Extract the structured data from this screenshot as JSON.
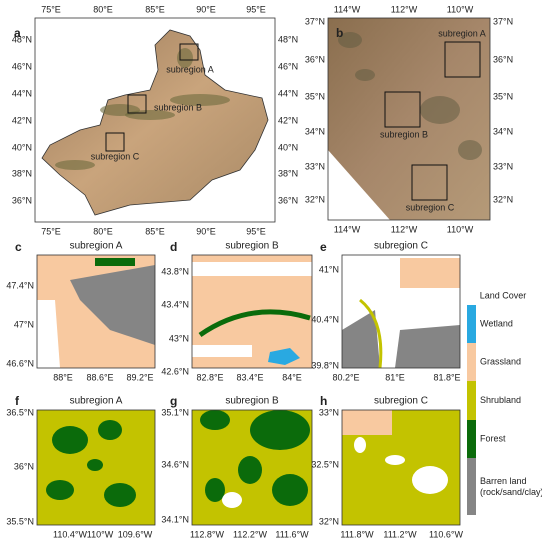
{
  "figure": {
    "panels": [
      {
        "label": "a",
        "xticks": [
          "75°E",
          "80°E",
          "85°E",
          "90°E",
          "95°E"
        ],
        "yticks": [
          "48°N",
          "46°N",
          "44°N",
          "42°N",
          "40°N",
          "38°N",
          "36°N"
        ],
        "subregions": [
          "subregion A",
          "subregion B",
          "subregion C"
        ]
      },
      {
        "label": "b",
        "xticks": [
          "114°W",
          "112°W",
          "110°W"
        ],
        "yticks": [
          "37°N",
          "36°N",
          "35°N",
          "34°N",
          "33°N",
          "32°N"
        ],
        "subregions": [
          "subregion A",
          "subregion B",
          "subregion C"
        ]
      },
      {
        "label": "c",
        "title": "subregion A",
        "xticks": [
          "88°E",
          "88.6°E",
          "89.2°E"
        ],
        "yticks": [
          "47.4°N",
          "47°N",
          "46.6°N"
        ]
      },
      {
        "label": "d",
        "title": "subregion B",
        "xticks": [
          "82.8°E",
          "83.4°E",
          "84°E"
        ],
        "yticks": [
          "43.8°N",
          "43.4°N",
          "43°N",
          "42.6°N"
        ]
      },
      {
        "label": "e",
        "title": "subregion C",
        "xticks": [
          "80.2°E",
          "81°E",
          "81.8°E"
        ],
        "yticks": [
          "41°N",
          "40.4°N",
          "39.8°N"
        ]
      },
      {
        "label": "f",
        "title": "subregion A",
        "xticks": [
          "110.4°W",
          "110°W",
          "109.6°W"
        ],
        "yticks": [
          "36.5°N",
          "36°N",
          "35.5°N"
        ]
      },
      {
        "label": "g",
        "title": "subregion B",
        "xticks": [
          "112.8°W",
          "112.2°W",
          "111.6°W"
        ],
        "yticks": [
          "35.1°N",
          "34.6°N",
          "34.1°N"
        ]
      },
      {
        "label": "h",
        "title": "subregion C",
        "xticks": [
          "111.8°W",
          "111.2°W",
          "110.6°W"
        ],
        "yticks": [
          "33°N",
          "32.5°N",
          "32°N"
        ]
      }
    ],
    "legend": {
      "title": "Land Cover",
      "items": [
        {
          "name": "Wetland",
          "color": "#29a9e1"
        },
        {
          "name": "Grassland",
          "color": "#f8c9a0"
        },
        {
          "name": "Shrubland",
          "color": "#c3c300"
        },
        {
          "name": "Forest",
          "color": "#0b6b0b"
        },
        {
          "name": "Barren land",
          "detail": "(rock/sand/clay)",
          "color": "#858585"
        }
      ]
    }
  }
}
